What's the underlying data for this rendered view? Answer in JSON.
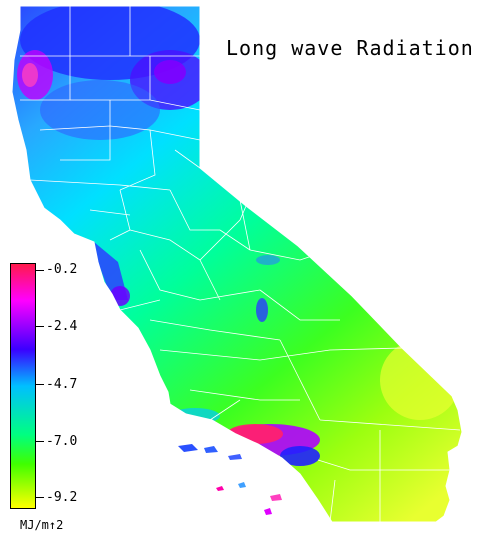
{
  "title": "Long wave Radiation",
  "legend": {
    "ticks": [
      "-0.2",
      "-2.4",
      "-4.7",
      "-7.0",
      "-9.2"
    ],
    "units": "MJ/m↑2",
    "colors": [
      "#ff1a4b",
      "#ff00ff",
      "#3b00ff",
      "#00bfff",
      "#00ff80",
      "#7fff00",
      "#ffff00"
    ]
  },
  "map_colors": {
    "strong_negative": "#ff2070",
    "magenta": "#d000d0",
    "blue": "#2020ff",
    "cyan": "#00c8ff",
    "green": "#00ff60",
    "lime": "#80ff00",
    "yellow": "#e0ff20",
    "county_lines": "#ffffff"
  }
}
